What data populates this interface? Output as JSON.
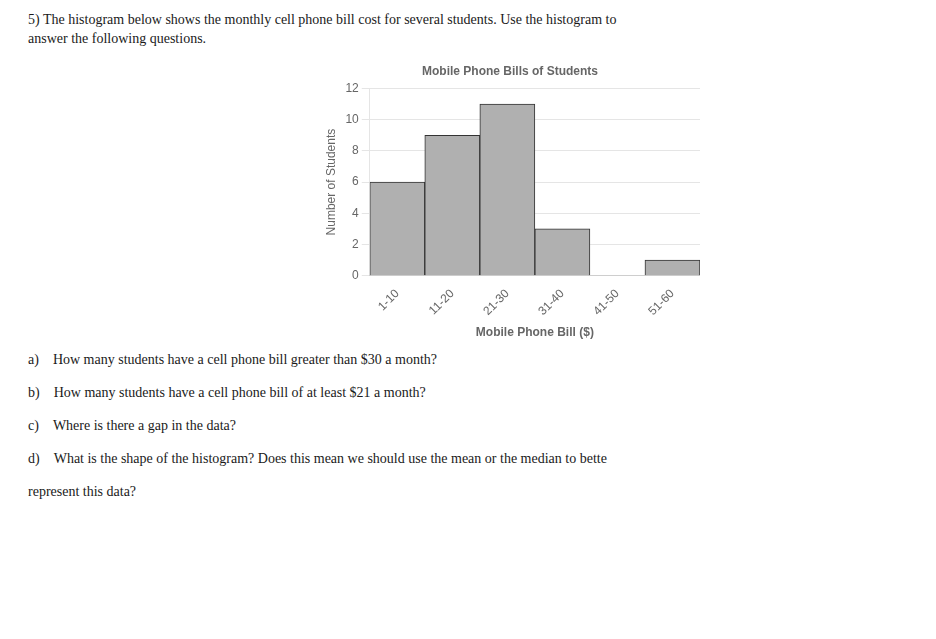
{
  "chart_data": {
    "type": "bar",
    "title": "Mobile Phone Bills of Students",
    "xlabel": "Mobile Phone Bill ($)",
    "ylabel": "Number of Students",
    "categories": [
      "1-10",
      "11-20",
      "21-30",
      "31-40",
      "41-50",
      "51-60"
    ],
    "values": [
      6,
      9,
      11,
      3,
      0,
      1
    ],
    "color": "#b0b0b0",
    "ylim": [
      0,
      12
    ],
    "yticks": [
      0,
      2,
      4,
      6,
      8,
      10,
      12
    ],
    "grid": true,
    "annotations": [
      "5) The histogram below shows the monthly cell phone bill cost for several students. Use the histogram to",
      "answer the following questions.",
      "a) How many students have a cell phone bill greater than $30 a month?",
      "b) How many students have a cell phone bill of at least $21 a month?",
      "c) Where is there a gap in the data?",
      "d) What is the shape of the histogram? Does this mean we should use the mean or the median to bette",
      "represent this data?"
    ]
  }
}
